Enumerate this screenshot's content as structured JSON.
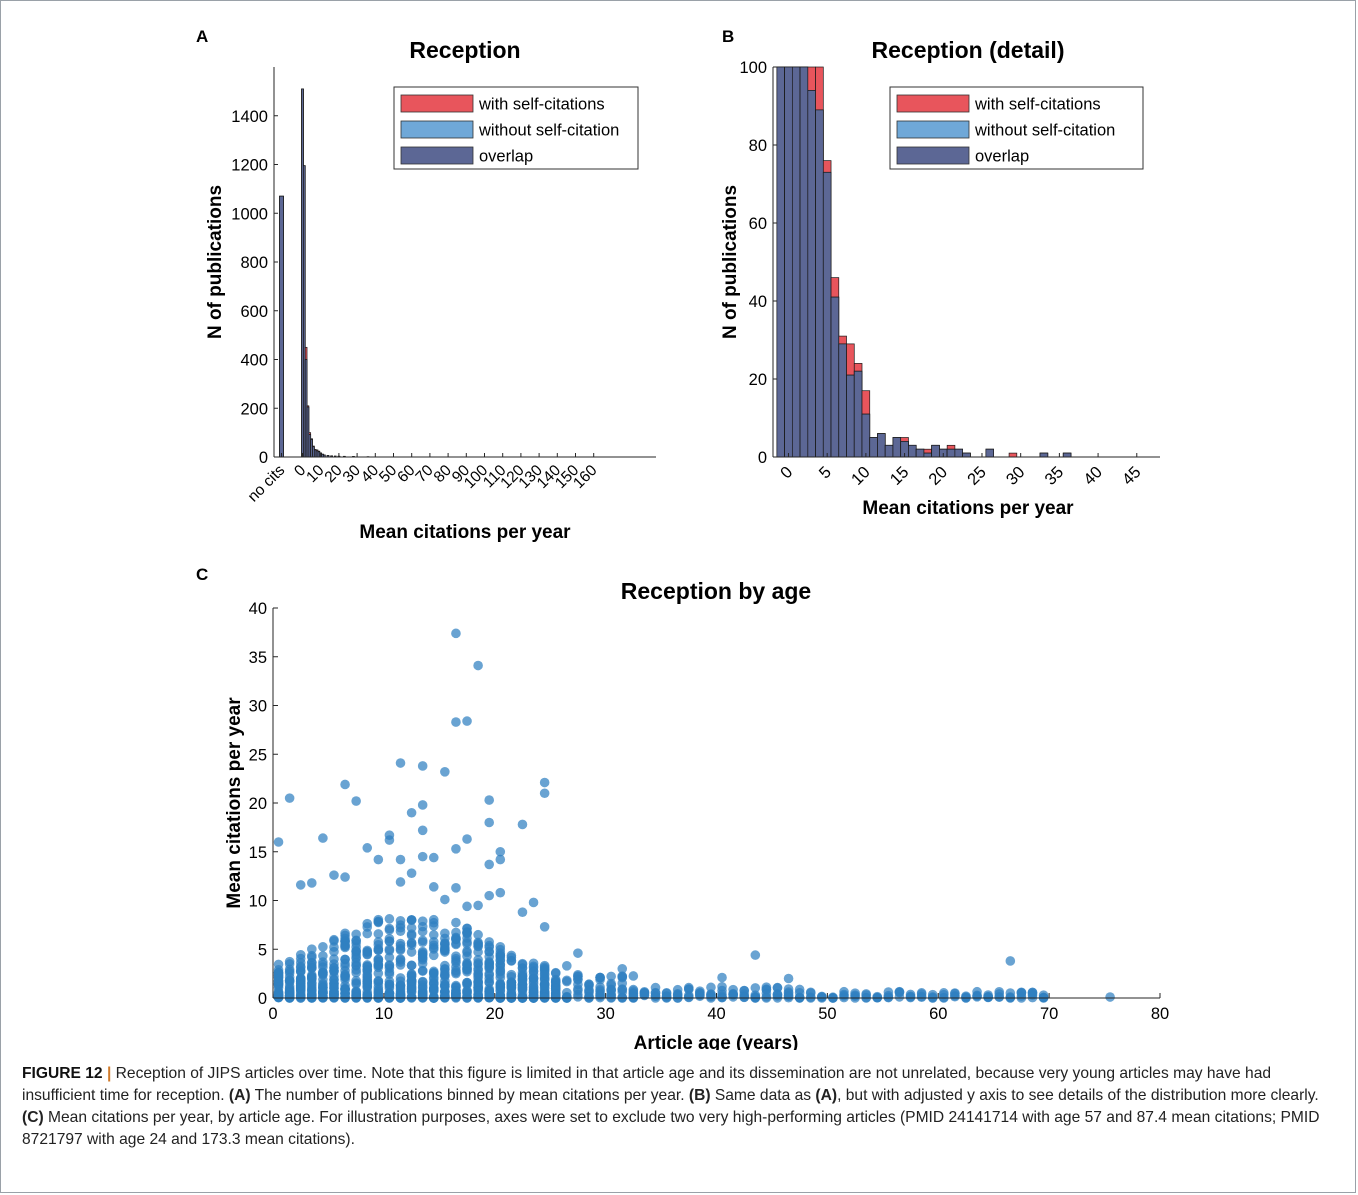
{
  "colors": {
    "self": "#e8555c",
    "without": "#6fa8d8",
    "overlap": "#5c6795",
    "scatter": "#2f7fc1"
  },
  "panels": {
    "a": {
      "letter": "A"
    },
    "b": {
      "letter": "B"
    },
    "c": {
      "letter": "C"
    }
  },
  "legend": [
    "with self-citations",
    "without self-citation",
    "overlap"
  ],
  "caption": {
    "figure_label": "FIGURE 12",
    "separator": "|",
    "intro": " Reception of JIPS articles over time. Note that this figure is limited in that article age and its dissemination are not unrelated, because very young articles may have had insufficient time for reception. ",
    "a_ref": "(A)",
    "a_text": " The number of publications binned by mean citations per year. ",
    "b_ref": "(B)",
    "b_text1": " Same data as ",
    "b_ref2": "(A)",
    "b_text2": ", but with adjusted y axis to see details of the distribution more clearly. ",
    "c_ref": "(C)",
    "c_text": " Mean citations per year, by article age. For illustration purposes, axes were set to exclude two very high-performing articles (PMID 24141714 with age 57 and 87.4 mean citations; PMID 8721797 with age 24 and 173.3 mean citations)."
  },
  "chart_data": [
    {
      "id": "A",
      "type": "bar",
      "title": "Reception",
      "xlabel": "Mean citations per year",
      "ylabel": "N of publications",
      "ylim": [
        0,
        1600
      ],
      "yticks": [
        0,
        200,
        400,
        600,
        800,
        1000,
        1200,
        1400
      ],
      "xtick_labels": [
        "no cits",
        "0",
        "10",
        "20",
        "30",
        "40",
        "50",
        "60",
        "70",
        "80",
        "90",
        "100",
        "110",
        "120",
        "130",
        "140",
        "150",
        "160"
      ],
      "legend_position": "top-right",
      "no_cits_value": 1070,
      "bins": [
        {
          "x": 0,
          "with_self": 1510,
          "without": 1510
        },
        {
          "x": 1,
          "with_self": 1195,
          "without": 1195
        },
        {
          "x": 2,
          "with_self": 450,
          "without": 400
        },
        {
          "x": 3,
          "with_self": 210,
          "without": 205
        },
        {
          "x": 4,
          "with_self": 100,
          "without": 92
        },
        {
          "x": 5,
          "with_self": 75,
          "without": 72
        },
        {
          "x": 6,
          "with_self": 45,
          "without": 42
        },
        {
          "x": 7,
          "with_self": 31,
          "without": 29
        },
        {
          "x": 8,
          "with_self": 29,
          "without": 25
        },
        {
          "x": 9,
          "with_self": 24,
          "without": 21
        },
        {
          "x": 10,
          "with_self": 17,
          "without": 15
        },
        {
          "x": 11,
          "with_self": 12,
          "without": 11
        },
        {
          "x": 12,
          "with_self": 8,
          "without": 8
        },
        {
          "x": 14,
          "with_self": 6,
          "without": 6
        },
        {
          "x": 16,
          "with_self": 5,
          "without": 4
        },
        {
          "x": 18,
          "with_self": 4,
          "without": 3
        },
        {
          "x": 20,
          "with_self": 3,
          "without": 3
        },
        {
          "x": 23,
          "with_self": 3,
          "without": 2
        },
        {
          "x": 28,
          "with_self": 2,
          "without": 2
        },
        {
          "x": 36,
          "with_self": 1,
          "without": 1
        }
      ]
    },
    {
      "id": "B",
      "type": "bar",
      "title": "Reception (detail)",
      "xlabel": "Mean citations per year",
      "ylabel": "N of publications",
      "ylim": [
        0,
        100
      ],
      "xlim": [
        -2,
        48
      ],
      "yticks": [
        0,
        20,
        40,
        60,
        80,
        100
      ],
      "xticks": [
        0,
        5,
        10,
        15,
        20,
        25,
        30,
        35,
        40,
        45
      ],
      "legend_position": "top-right",
      "bins": [
        {
          "x": -1,
          "with_self": 100,
          "without": 100
        },
        {
          "x": 0,
          "with_self": 100,
          "without": 100
        },
        {
          "x": 1,
          "with_self": 100,
          "without": 100
        },
        {
          "x": 2,
          "with_self": 100,
          "without": 100
        },
        {
          "x": 3,
          "with_self": 100,
          "without": 94
        },
        {
          "x": 4,
          "with_self": 100,
          "without": 89
        },
        {
          "x": 5,
          "with_self": 76,
          "without": 73
        },
        {
          "x": 6,
          "with_self": 46,
          "without": 41
        },
        {
          "x": 7,
          "with_self": 31,
          "without": 29
        },
        {
          "x": 8,
          "with_self": 29,
          "without": 21
        },
        {
          "x": 9,
          "with_self": 24,
          "without": 22
        },
        {
          "x": 10,
          "with_self": 17,
          "without": 11
        },
        {
          "x": 11,
          "with_self": 5,
          "without": 5
        },
        {
          "x": 12,
          "with_self": 6,
          "without": 6
        },
        {
          "x": 13,
          "with_self": 3,
          "without": 3
        },
        {
          "x": 14,
          "with_self": 5,
          "without": 5
        },
        {
          "x": 15,
          "with_self": 5,
          "without": 4
        },
        {
          "x": 16,
          "with_self": 3,
          "without": 3
        },
        {
          "x": 17,
          "with_self": 2,
          "without": 2
        },
        {
          "x": 18,
          "with_self": 2,
          "without": 1
        },
        {
          "x": 19,
          "with_self": 3,
          "without": 3
        },
        {
          "x": 20,
          "with_self": 2,
          "without": 2
        },
        {
          "x": 21,
          "with_self": 3,
          "without": 2
        },
        {
          "x": 22,
          "with_self": 2,
          "without": 2
        },
        {
          "x": 23,
          "with_self": 1,
          "without": 1
        },
        {
          "x": 26,
          "with_self": 2,
          "without": 2
        },
        {
          "x": 29,
          "with_self": 1,
          "without": 0
        },
        {
          "x": 33,
          "with_self": 1,
          "without": 1
        },
        {
          "x": 36,
          "with_self": 1,
          "without": 1
        }
      ]
    },
    {
      "id": "C",
      "type": "scatter",
      "title": "Reception by age",
      "xlabel": "Article age (years)",
      "ylabel": "Mean citations per year",
      "xlim": [
        0,
        80
      ],
      "ylim": [
        0,
        40
      ],
      "xticks": [
        0,
        10,
        20,
        30,
        40,
        50,
        60,
        70,
        80
      ],
      "yticks": [
        0,
        5,
        10,
        15,
        20,
        25,
        30,
        35,
        40
      ],
      "outliers": [
        [
          16.5,
          37.4
        ],
        [
          18.5,
          34.1
        ],
        [
          16.5,
          28.3
        ],
        [
          17.5,
          28.4
        ],
        [
          11.5,
          24.1
        ],
        [
          13.5,
          23.8
        ],
        [
          15.5,
          23.2
        ],
        [
          1.5,
          20.5
        ],
        [
          6.5,
          21.9
        ],
        [
          7.5,
          20.2
        ],
        [
          24.5,
          22.1
        ],
        [
          24.5,
          21.0
        ],
        [
          19.5,
          20.3
        ],
        [
          19.5,
          18.0
        ],
        [
          22.5,
          17.8
        ],
        [
          13.5,
          19.8
        ],
        [
          12.5,
          19.0
        ],
        [
          10.5,
          16.7
        ],
        [
          10.5,
          16.2
        ],
        [
          4.5,
          16.4
        ],
        [
          0.5,
          16.0
        ],
        [
          14.5,
          14.4
        ],
        [
          13.5,
          17.2
        ],
        [
          17.5,
          16.3
        ],
        [
          16.5,
          15.3
        ],
        [
          20.5,
          15.0
        ],
        [
          20.5,
          14.2
        ],
        [
          19.5,
          13.7
        ],
        [
          9.5,
          14.2
        ],
        [
          11.5,
          14.2
        ],
        [
          13.5,
          14.5
        ],
        [
          8.5,
          15.4
        ],
        [
          5.5,
          12.6
        ],
        [
          6.5,
          12.4
        ],
        [
          3.5,
          11.8
        ],
        [
          2.5,
          11.6
        ],
        [
          11.5,
          11.9
        ],
        [
          12.5,
          12.8
        ],
        [
          14.5,
          11.4
        ],
        [
          16.5,
          11.3
        ],
        [
          19.5,
          10.5
        ],
        [
          20.5,
          10.8
        ],
        [
          22.5,
          8.8
        ],
        [
          23.5,
          9.8
        ],
        [
          24.5,
          7.3
        ],
        [
          18.5,
          9.5
        ],
        [
          17.5,
          9.4
        ],
        [
          15.5,
          10.1
        ],
        [
          43.5,
          4.4
        ],
        [
          46.5,
          2.0
        ],
        [
          66.5,
          3.8
        ],
        [
          75.5,
          0.1
        ],
        [
          40.5,
          2.1
        ],
        [
          31.5,
          3.0
        ],
        [
          27.5,
          4.6
        ],
        [
          26.5,
          3.3
        ],
        [
          29.5,
          2.1
        ],
        [
          68.5,
          0.3
        ],
        [
          67.5,
          0.5
        ],
        [
          64.5,
          0.3
        ]
      ]
    }
  ]
}
